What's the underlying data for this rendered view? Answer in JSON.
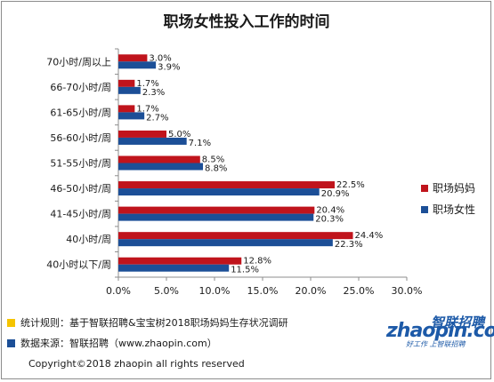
{
  "chart_data": {
    "type": "bar",
    "orientation": "horizontal",
    "title": "职场女性投入工作的时间",
    "categories": [
      "70小时/周以上",
      "66-70小时/周",
      "61-65小时/周",
      "56-60小时/周",
      "51-55小时/周",
      "46-50小时/周",
      "41-45小时/周",
      "40小时/周",
      "40小时以下/周"
    ],
    "series": [
      {
        "name": "职场妈妈",
        "color": "#c0141c",
        "values": [
          3.0,
          1.7,
          1.7,
          5.0,
          8.5,
          22.5,
          20.4,
          24.4,
          12.8
        ],
        "labels": [
          "3.0%",
          "1.7%",
          "1.7%",
          "5.0%",
          "8.5%",
          "22.5%",
          "20.4%",
          "24.4%",
          "12.8%"
        ]
      },
      {
        "name": "职场女性",
        "color": "#1c4f97",
        "values": [
          3.9,
          2.3,
          2.7,
          7.1,
          8.8,
          20.9,
          20.3,
          22.3,
          11.5
        ],
        "labels": [
          "3.9%",
          "2.3%",
          "2.7%",
          "7.1%",
          "8.8%",
          "20.9%",
          "20.3%",
          "22.3%",
          "11.5%"
        ]
      }
    ],
    "xlim": [
      0,
      30
    ],
    "xticks": [
      0,
      5,
      10,
      15,
      20,
      25,
      30
    ],
    "xtick_labels": [
      "0.0%",
      "5.0%",
      "10.0%",
      "15.0%",
      "20.0%",
      "25.0%",
      "30.0%"
    ],
    "grid": false,
    "legend": "right"
  },
  "notes": [
    {
      "text": "统计规则：基于智联招聘&宝宝树2018职场妈妈生存状况调研",
      "color": "#f5c400"
    },
    {
      "text": "数据来源：智联招聘（www.zhaopin.com）",
      "color": "#1c4f97"
    }
  ],
  "copyright": "Copyright©2018 zhaopin all rights reserved",
  "logo": {
    "cn": "智联招聘",
    "main": "zhaopin.com",
    "slogan": "好工作 上智联招聘"
  }
}
